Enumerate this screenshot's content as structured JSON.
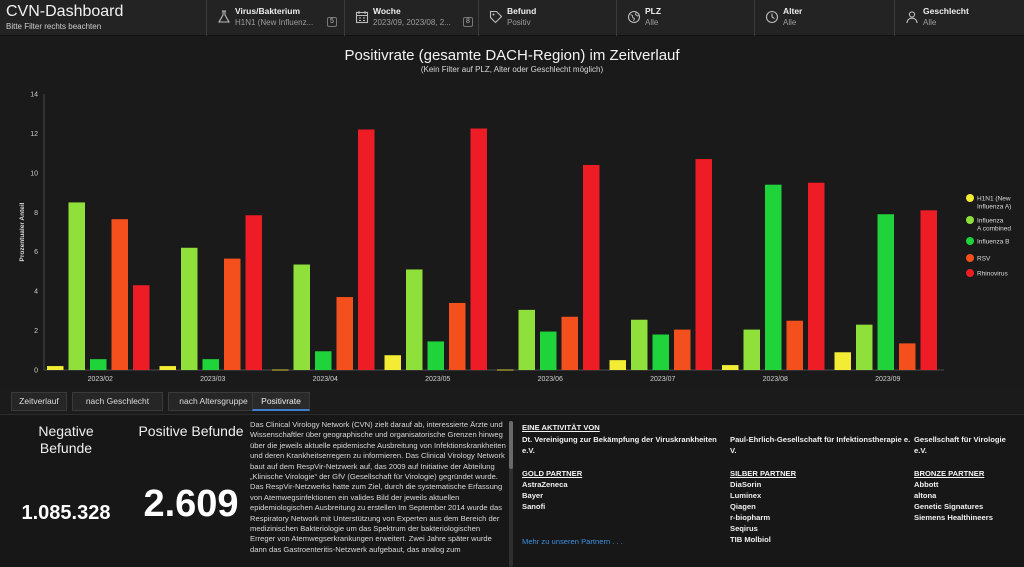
{
  "header": {
    "title": "CVN-Dashboard",
    "subtitle": "Bitte Filter rechts beachten",
    "filters": [
      {
        "label": "Virus/Bakterium",
        "value": "H1N1 (New Influenz...",
        "count": "5",
        "icon": "flask-icon"
      },
      {
        "label": "Woche",
        "value": "2023/09, 2023/08, 2...",
        "count": "8",
        "icon": "calendar-icon"
      },
      {
        "label": "Befund",
        "value": "Positiv",
        "count": "",
        "icon": "tag-icon"
      },
      {
        "label": "PLZ",
        "value": "Alle",
        "count": "",
        "icon": "globe-icon"
      },
      {
        "label": "Alter",
        "value": "Alle",
        "count": "",
        "icon": "clock-icon"
      },
      {
        "label": "Geschlecht",
        "value": "Alle",
        "count": "",
        "icon": "person-icon"
      }
    ]
  },
  "chart_data": {
    "type": "bar",
    "title": "Positivrate (gesamte DACH-Region) im Zeitverlauf",
    "subtitle": "(Kein Filter auf PLZ, Alter oder Geschlecht möglich)",
    "ylabel": "Prozentualer Anteil",
    "xlabel": "",
    "ylim": [
      0,
      14
    ],
    "yticks": [
      0,
      2,
      4,
      6,
      8,
      10,
      12,
      14
    ],
    "grid": false,
    "legend_position": "right",
    "categories": [
      "2023/02",
      "2023/03",
      "2023/04",
      "2023/05",
      "2023/06",
      "2023/07",
      "2023/08",
      "2023/09"
    ],
    "series": [
      {
        "name": "H1N1 (New Influenza A)",
        "color": "#f2ec35",
        "values": [
          0.2,
          0.2,
          0.02,
          0.75,
          0.02,
          0.5,
          0.25,
          0.9
        ]
      },
      {
        "name": "Influenza A combined",
        "color": "#8fe03a",
        "values": [
          8.5,
          6.2,
          5.35,
          5.1,
          3.05,
          2.55,
          2.05,
          2.3
        ]
      },
      {
        "name": "Influenza B",
        "color": "#1fd33a",
        "values": [
          0.55,
          0.55,
          0.95,
          1.45,
          1.95,
          1.8,
          9.4,
          7.9
        ]
      },
      {
        "name": "RSV",
        "color": "#f4501e",
        "values": [
          7.65,
          5.65,
          3.7,
          3.4,
          2.7,
          2.05,
          2.5,
          1.35
        ]
      },
      {
        "name": "Rhinovirus",
        "color": "#ee1c25",
        "values": [
          4.3,
          7.85,
          12.2,
          12.25,
          10.4,
          10.7,
          9.5,
          8.1
        ]
      }
    ]
  },
  "tabs": [
    {
      "label": "Zeitverlauf",
      "active": false
    },
    {
      "label": "nach Geschlecht",
      "active": false
    },
    {
      "label": "nach Altersgruppe",
      "active": false
    },
    {
      "label": "Positivrate",
      "active": true
    }
  ],
  "kpis": {
    "negative_label": "Negative Befunde",
    "negative_value": "1.085.328",
    "positive_label": "Positive Befunde",
    "positive_value": "2.609"
  },
  "description": "Das Clinical Virology Network (CVN) zielt darauf ab, interessierte Ärzte und Wissenschaftler über geographische und organisatorische Grenzen hinweg über die jeweils aktuelle epidemische Ausbreitung von Infektionskrankheiten und deren Krankheitserregern zu informieren. Das Clinical Virology Network baut auf dem RespVir-Netzwerk auf, das 2009 auf Initiative der Abteilung „Klinische Virologie“ der GfV (Gesellschaft für Virologie) gegründet wurde. Das RespVir-Netzwerks hatte zum Ziel, durch die systematische Erfassung von Atemwegsinfektionen ein valides Bild der jeweils aktuellen epidemiologischen Ausbreitung zu erstellen  Im September 2014 wurde das Respiratory Network mit Unterstützung von Experten aus dem Bereich der medizinischen Bakteriologie um das Spektrum der bakteriologischen Erreger von Atemwegserkrankungen erweitert. Zwei Jahre später wurde dann das Gastroenteritis-Netzwerk aufgebaut, das analog zum",
  "partners": {
    "activity_heading": "EINE AKTIVITÄT VON",
    "activity_orgs": [
      "Dt. Vereinigung zur Bekämpfung der Viruskrankheiten e.V.",
      "Paul-Ehrlich-Gesellschaft für Infektionstherapie e. V.",
      "Gesellschaft für Virologie e.V."
    ],
    "gold_heading": "GOLD PARTNER",
    "gold": [
      "AstraZeneca",
      "Bayer",
      "Sanofi"
    ],
    "silver_heading": "SILBER PARTNER",
    "silver": [
      "DiaSorin",
      "Luminex",
      "Qiagen",
      "r-biopharm",
      "Seqirus",
      "TIB Molbiol"
    ],
    "bronze_heading": "BRONZE PARTNER",
    "bronze": [
      "Abbott",
      "altona",
      "Genetic Signatures",
      "Siemens Healthineers"
    ],
    "more_link": "Mehr zu unseren Partnern . . ."
  }
}
